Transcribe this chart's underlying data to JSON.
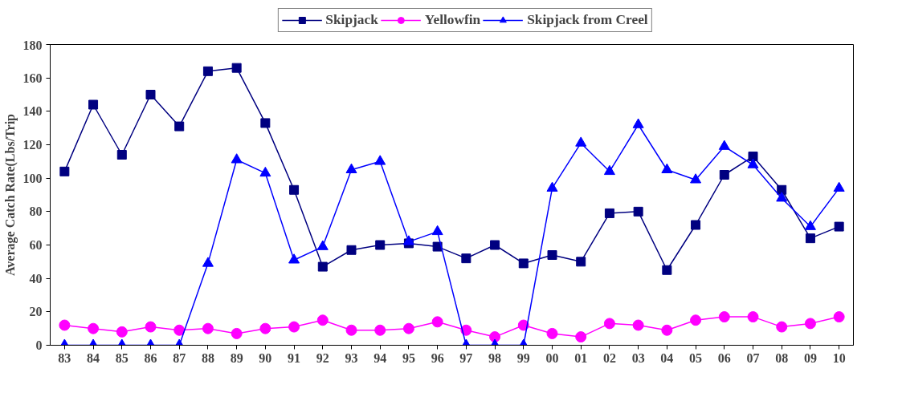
{
  "chart_data": {
    "type": "line",
    "ylabel": "Average Catch Rate(Lbs/Trip",
    "categories": [
      "83",
      "84",
      "85",
      "86",
      "87",
      "88",
      "89",
      "90",
      "91",
      "92",
      "93",
      "94",
      "95",
      "96",
      "97",
      "98",
      "99",
      "00",
      "01",
      "02",
      "03",
      "04",
      "05",
      "06",
      "07",
      "08",
      "09",
      "10"
    ],
    "series": [
      {
        "name": "Skipjack",
        "color": "#000080",
        "marker": "square",
        "values": [
          104,
          144,
          114,
          150,
          131,
          164,
          166,
          133,
          93,
          47,
          57,
          60,
          61,
          59,
          52,
          60,
          49,
          54,
          50,
          79,
          80,
          45,
          72,
          102,
          113,
          93,
          64,
          71
        ]
      },
      {
        "name": "Yellowfin",
        "color": "#ff00ff",
        "marker": "circle",
        "values": [
          12,
          10,
          8,
          11,
          9,
          10,
          7,
          10,
          11,
          15,
          9,
          9,
          10,
          14,
          9,
          5,
          12,
          7,
          5,
          13,
          12,
          9,
          15,
          17,
          17,
          11,
          13,
          17
        ]
      },
      {
        "name": "Skipjack from Creel",
        "color": "#0000ff",
        "marker": "triangle",
        "values": [
          0,
          0,
          0,
          0,
          0,
          49,
          111,
          103,
          51,
          59,
          105,
          110,
          62,
          68,
          0,
          0,
          0,
          94,
          121,
          104,
          132,
          105,
          99,
          119,
          108,
          88,
          71,
          94
        ]
      }
    ],
    "ylim": [
      0,
      180
    ],
    "yticks": [
      0,
      20,
      40,
      60,
      80,
      100,
      120,
      140,
      160,
      180
    ],
    "grid": false,
    "legend": "top",
    "line_style": "solid"
  }
}
